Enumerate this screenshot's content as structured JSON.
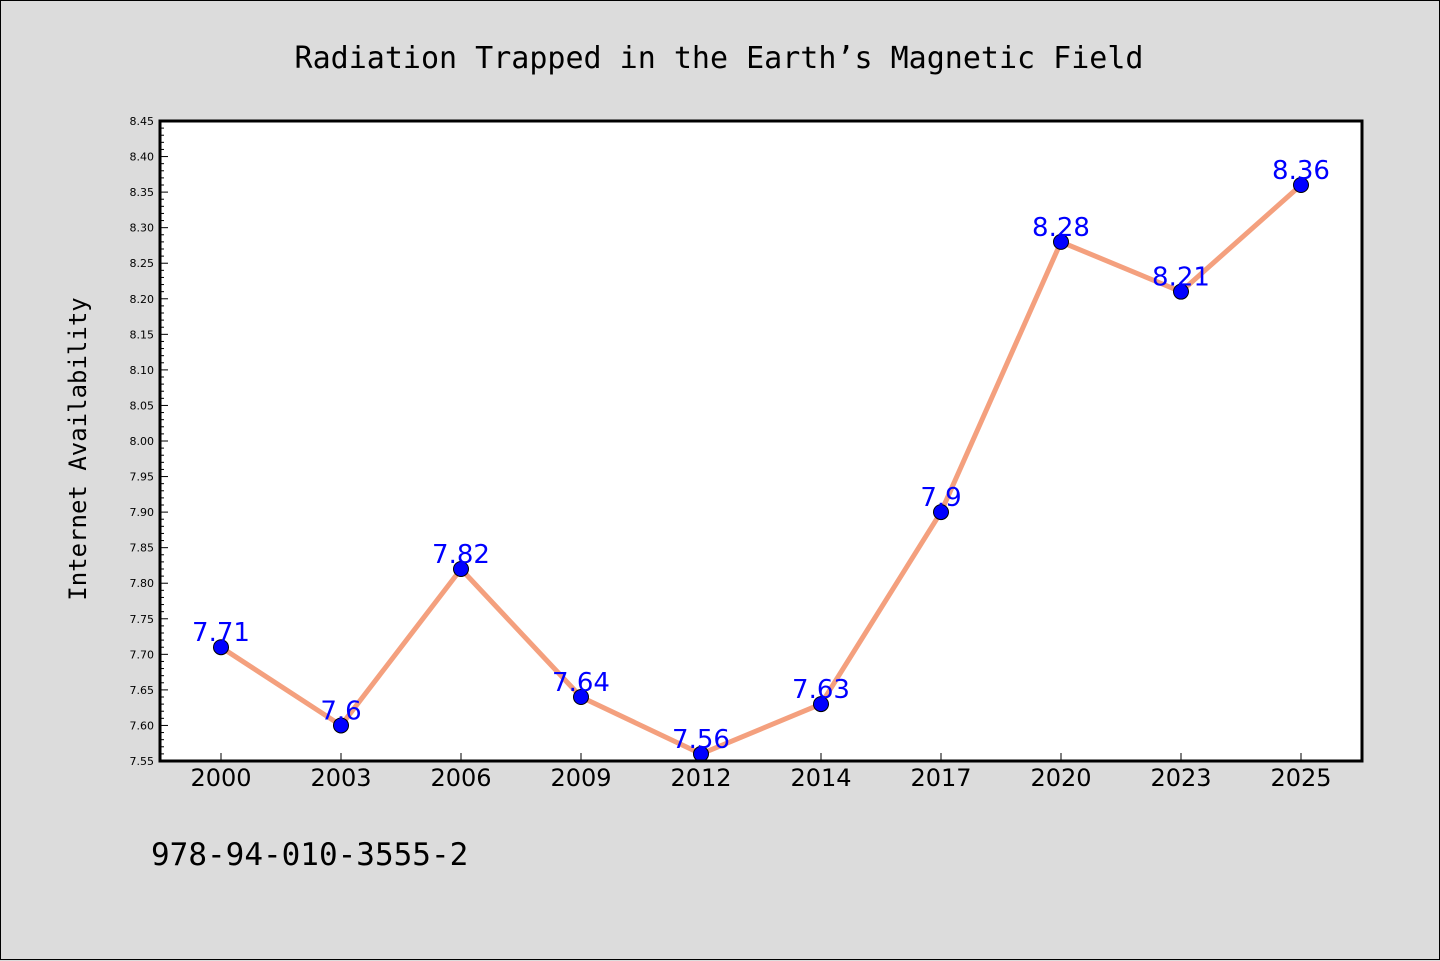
{
  "chart_data": {
    "type": "line",
    "title": "Radiation Trapped in the Earth’s Magnetic Field",
    "xlabel": "",
    "ylabel": "Internet Availability",
    "categories": [
      "2000",
      "2003",
      "2006",
      "2009",
      "2012",
      "2014",
      "2017",
      "2020",
      "2023",
      "2025"
    ],
    "values": [
      7.71,
      7.6,
      7.82,
      7.64,
      7.56,
      7.63,
      7.9,
      8.28,
      8.21,
      8.36
    ],
    "ylim": [
      7.55,
      8.45
    ],
    "yticks": [
      "7.55",
      "7.60",
      "7.65",
      "7.70",
      "7.75",
      "7.80",
      "7.85",
      "7.90",
      "7.95",
      "8.00",
      "8.05",
      "8.10",
      "8.15",
      "8.20",
      "8.25",
      "8.30",
      "8.35",
      "8.40",
      "8.45"
    ],
    "data_labels": [
      "7.71",
      "7.6",
      "7.82",
      "7.64",
      "7.56",
      "7.63",
      "7.9",
      "8.28",
      "8.21",
      "8.36"
    ],
    "grid": false,
    "line_color": "#f4a07e",
    "marker_color": "#0000ff",
    "label_color": "#0000ff"
  },
  "footer_text": "978-94-010-3555-2"
}
